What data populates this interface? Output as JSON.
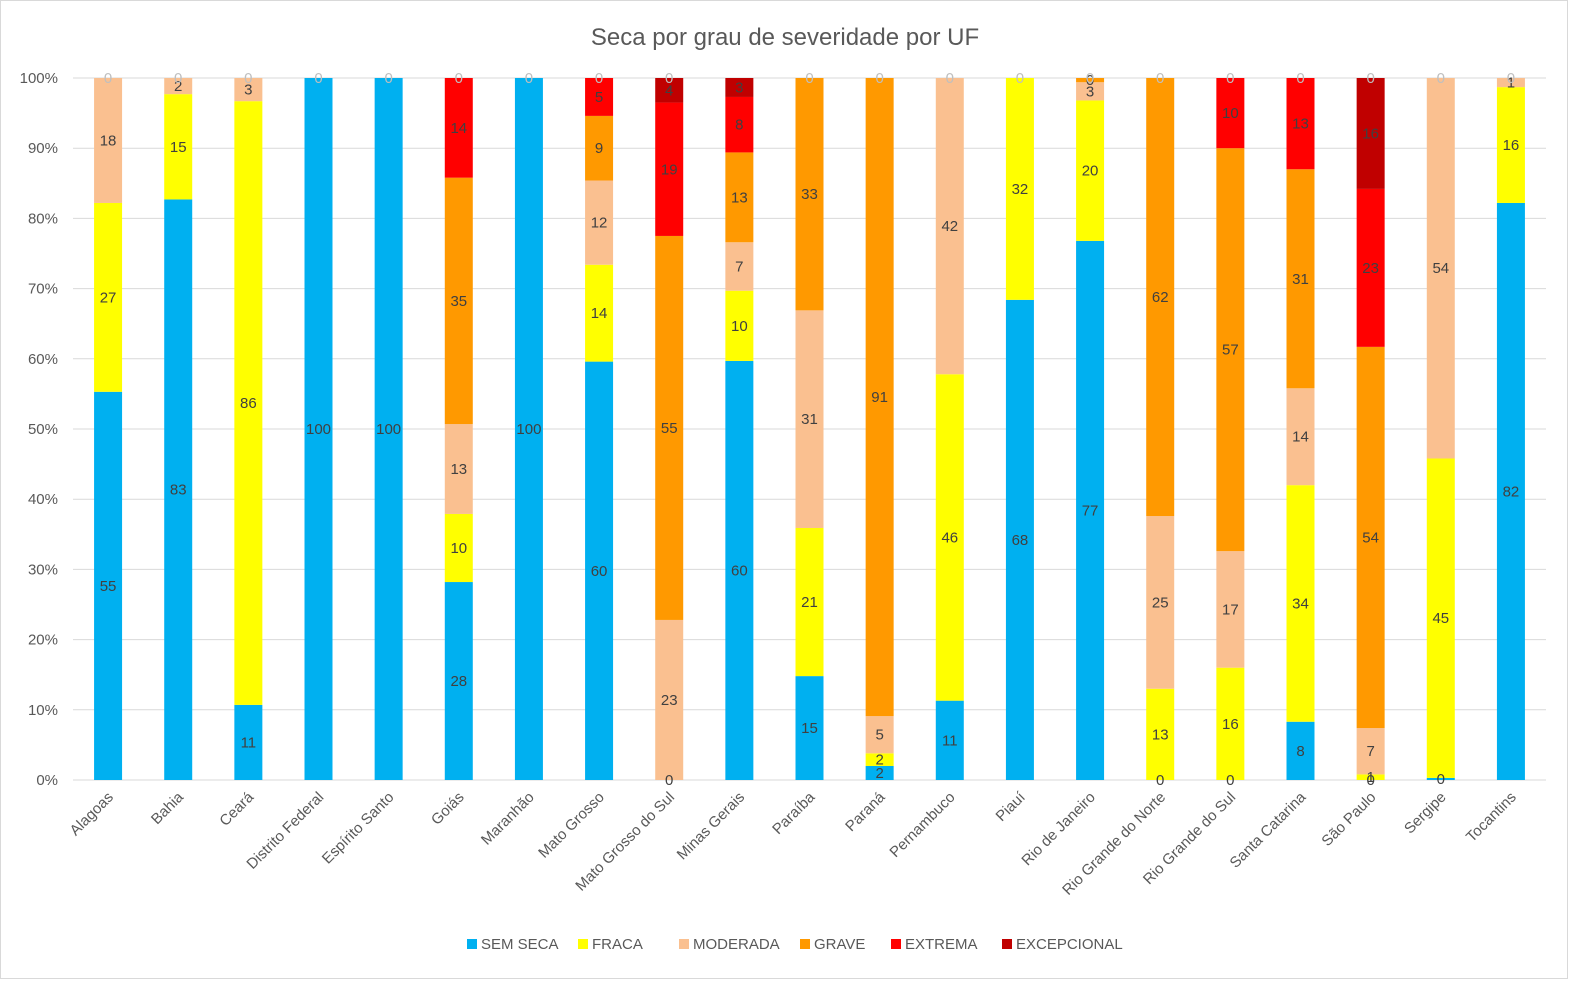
{
  "chart_data": {
    "type": "bar",
    "stacked": "percent",
    "title": "Seca por grau de severidade por UF",
    "xlabel": "",
    "ylabel": "",
    "ylim": [
      0,
      100
    ],
    "y_ticks": [
      "0%",
      "10%",
      "20%",
      "30%",
      "40%",
      "50%",
      "60%",
      "70%",
      "80%",
      "90%",
      "100%"
    ],
    "grid": true,
    "legend_position": "bottom",
    "categories": [
      "Alagoas",
      "Bahia",
      "Ceará",
      "Distrito Federal",
      "Espírito Santo",
      "Goiás",
      "Maranhão",
      "Mato Grosso",
      "Mato Grosso do Sul",
      "Minas Gerais",
      "Paraíba",
      "Paraná",
      "Pernambuco",
      "Piauí",
      "Rio de Janeiro",
      "Rio Grande do Norte",
      "Rio Grande do Sul",
      "Santa Catarina",
      "São Paulo",
      "Sergipe",
      "Tocantins"
    ],
    "series": [
      {
        "name": "SEM SECA",
        "color": "#00b0f0",
        "values": [
          55,
          83,
          11,
          100,
          100,
          28,
          100,
          60,
          0,
          60,
          15,
          2,
          11,
          68,
          77,
          0,
          0,
          8,
          0,
          0,
          82
        ]
      },
      {
        "name": "FRACA",
        "color": "#ffff00",
        "values": [
          27,
          15,
          86,
          0,
          0,
          10,
          0,
          14,
          0,
          10,
          21,
          2,
          46,
          32,
          20,
          13,
          16,
          34,
          1,
          45,
          16
        ]
      },
      {
        "name": "MODERADA",
        "color": "#fac090",
        "values": [
          18,
          2,
          3,
          0,
          0,
          13,
          0,
          12,
          23,
          7,
          31,
          5,
          42,
          0,
          3,
          25,
          17,
          14,
          7,
          54,
          1
        ]
      },
      {
        "name": "GRAVE",
        "color": "#ff9900",
        "values": [
          0,
          0,
          0,
          0,
          0,
          35,
          0,
          9,
          55,
          13,
          33,
          91,
          0,
          0,
          0,
          62,
          57,
          31,
          54,
          0,
          0
        ]
      },
      {
        "name": "EXTREMA",
        "color": "#ff0000",
        "values": [
          0,
          0,
          0,
          0,
          0,
          14,
          0,
          5,
          19,
          8,
          0,
          0,
          0,
          0,
          0,
          0,
          10,
          13,
          23,
          0,
          0
        ]
      },
      {
        "name": "EXCEPCIONAL",
        "color": "#c00000",
        "values": [
          0,
          0,
          0,
          0,
          0,
          0,
          0,
          0,
          4,
          3,
          0,
          0,
          0,
          0,
          0,
          0,
          0,
          0,
          16,
          0,
          0
        ]
      }
    ],
    "exact_fractions": [
      [
        0.553,
        0.269,
        0.178,
        0,
        0,
        0
      ],
      [
        0.827,
        0.15,
        0.023,
        0,
        0,
        0
      ],
      [
        0.107,
        0.86,
        0.033,
        0,
        0,
        0
      ],
      [
        1,
        0,
        0,
        0,
        0,
        0
      ],
      [
        1,
        0,
        0,
        0,
        0,
        0
      ],
      [
        0.282,
        0.097,
        0.128,
        0.351,
        0.142,
        0
      ],
      [
        1,
        0,
        0,
        0,
        0,
        0
      ],
      [
        0.596,
        0.138,
        0.12,
        0.092,
        0.054,
        0
      ],
      [
        0,
        0,
        0.228,
        0.547,
        0.19,
        0.035
      ],
      [
        0.597,
        0.1,
        0.069,
        0.128,
        0.079,
        0.027
      ],
      [
        0.148,
        0.211,
        0.31,
        0.331,
        0,
        0
      ],
      [
        0.02,
        0.018,
        0.053,
        0.909,
        0,
        0
      ],
      [
        0.113,
        0.465,
        0.422,
        0,
        0,
        0
      ],
      [
        0.684,
        0.316,
        0,
        0,
        0,
        0
      ],
      [
        0.768,
        0.2,
        0.026,
        0.006,
        0,
        0
      ],
      [
        0,
        0.13,
        0.246,
        0.624,
        0,
        0
      ],
      [
        0,
        0.16,
        0.166,
        0.574,
        0.1,
        0
      ],
      [
        0.083,
        0.337,
        0.138,
        0.312,
        0.13,
        0
      ],
      [
        0,
        0.008,
        0.066,
        0.543,
        0.225,
        0.158
      ],
      [
        0.003,
        0.455,
        0.542,
        0,
        0,
        0
      ],
      [
        0.822,
        0.165,
        0.013,
        0,
        0,
        0
      ]
    ]
  }
}
